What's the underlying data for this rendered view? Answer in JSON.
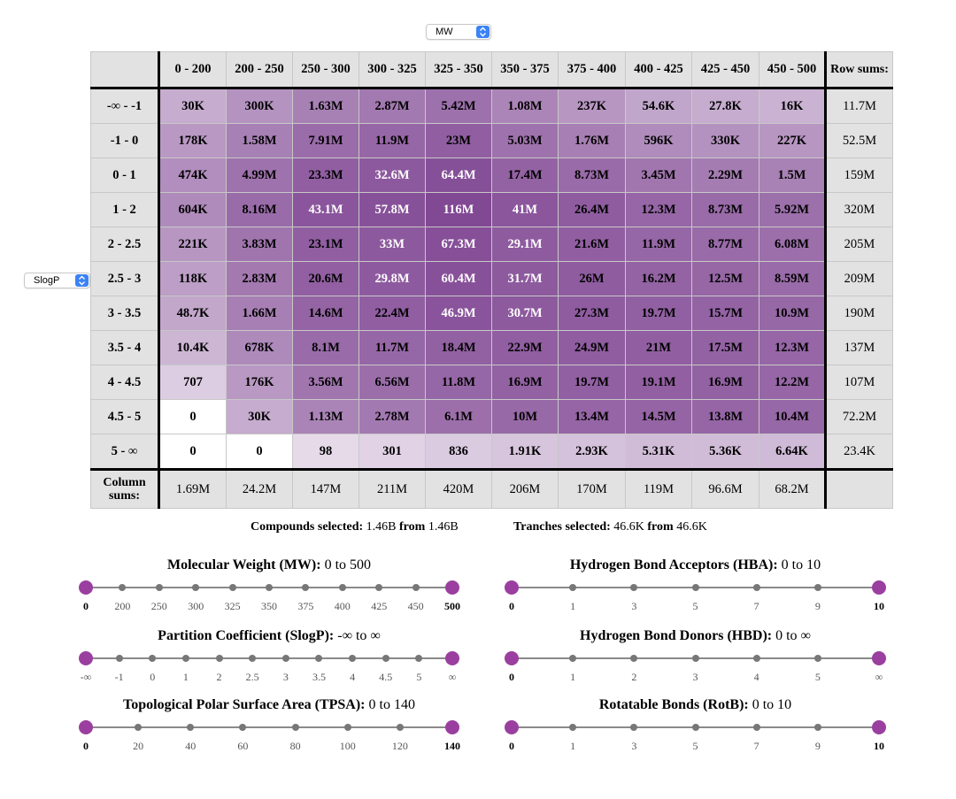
{
  "top_select": {
    "value": "MW"
  },
  "side_select": {
    "value": "SlogP"
  },
  "table": {
    "corner": "",
    "col_headers": [
      "0 - 200",
      "200 - 250",
      "250 - 300",
      "300 - 325",
      "325 - 350",
      "350 - 375",
      "375 - 400",
      "400 - 425",
      "425 - 450",
      "450 - 500"
    ],
    "row_sums_header": "Row sums:",
    "rows": [
      {
        "label": "-∞ - -1",
        "cells": [
          "30K",
          "300K",
          "1.63M",
          "2.87M",
          "5.42M",
          "1.08M",
          "237K",
          "54.6K",
          "27.8K",
          "16K"
        ],
        "sum": "11.7M"
      },
      {
        "label": "-1 - 0",
        "cells": [
          "178K",
          "1.58M",
          "7.91M",
          "11.9M",
          "23M",
          "5.03M",
          "1.76M",
          "596K",
          "330K",
          "227K"
        ],
        "sum": "52.5M"
      },
      {
        "label": "0 - 1",
        "cells": [
          "474K",
          "4.99M",
          "23.3M",
          "32.6M",
          "64.4M",
          "17.4M",
          "8.73M",
          "3.45M",
          "2.29M",
          "1.5M"
        ],
        "sum": "159M"
      },
      {
        "label": "1 - 2",
        "cells": [
          "604K",
          "8.16M",
          "43.1M",
          "57.8M",
          "116M",
          "41M",
          "26.4M",
          "12.3M",
          "8.73M",
          "5.92M"
        ],
        "sum": "320M"
      },
      {
        "label": "2 - 2.5",
        "cells": [
          "221K",
          "3.83M",
          "23.1M",
          "33M",
          "67.3M",
          "29.1M",
          "21.6M",
          "11.9M",
          "8.77M",
          "6.08M"
        ],
        "sum": "205M"
      },
      {
        "label": "2.5 - 3",
        "cells": [
          "118K",
          "2.83M",
          "20.6M",
          "29.8M",
          "60.4M",
          "31.7M",
          "26M",
          "16.2M",
          "12.5M",
          "8.59M"
        ],
        "sum": "209M"
      },
      {
        "label": "3 - 3.5",
        "cells": [
          "48.7K",
          "1.66M",
          "14.6M",
          "22.4M",
          "46.9M",
          "30.7M",
          "27.3M",
          "19.7M",
          "15.7M",
          "10.9M"
        ],
        "sum": "190M"
      },
      {
        "label": "3.5 - 4",
        "cells": [
          "10.4K",
          "678K",
          "8.1M",
          "11.7M",
          "18.4M",
          "22.9M",
          "24.9M",
          "21M",
          "17.5M",
          "12.3M"
        ],
        "sum": "137M"
      },
      {
        "label": "4 - 4.5",
        "cells": [
          "707",
          "176K",
          "3.56M",
          "6.56M",
          "11.8M",
          "16.9M",
          "19.7M",
          "19.1M",
          "16.9M",
          "12.2M"
        ],
        "sum": "107M"
      },
      {
        "label": "4.5 - 5",
        "cells": [
          "0",
          "30K",
          "1.13M",
          "2.78M",
          "6.1M",
          "10M",
          "13.4M",
          "14.5M",
          "13.8M",
          "10.4M"
        ],
        "sum": "72.2M"
      },
      {
        "label": "5 - ∞",
        "cells": [
          "0",
          "0",
          "98",
          "301",
          "836",
          "1.91K",
          "2.93K",
          "5.31K",
          "5.36K",
          "6.64K"
        ],
        "sum": "23.4K"
      }
    ],
    "col_sums_label": "Column sums:",
    "col_sums": [
      "1.69M",
      "24.2M",
      "147M",
      "211M",
      "420M",
      "206M",
      "170M",
      "119M",
      "96.6M",
      "68.2M"
    ],
    "col_sums_corner": ""
  },
  "summary": {
    "compounds_label": "Compounds selected:",
    "compounds_value": "1.46B",
    "compounds_from": "from",
    "compounds_total": "1.46B",
    "tranches_label": "Tranches selected:",
    "tranches_value": "46.6K",
    "tranches_from": "from",
    "tranches_total": "46.6K"
  },
  "sliders": {
    "mw": {
      "title_bold": "Molecular Weight (MW):",
      "range": "0 to 500",
      "ticks": [
        "0",
        "200",
        "250",
        "300",
        "325",
        "350",
        "375",
        "400",
        "425",
        "450",
        "500"
      ]
    },
    "slogp": {
      "title_bold": "Partition Coefficient (SlogP):",
      "range": "-∞ to ∞",
      "ticks": [
        "-∞",
        "-1",
        "0",
        "1",
        "2",
        "2.5",
        "3",
        "3.5",
        "4",
        "4.5",
        "5",
        "∞"
      ]
    },
    "tpsa": {
      "title_bold": "Topological Polar Surface Area (TPSA):",
      "range": "0 to 140",
      "ticks": [
        "0",
        "20",
        "40",
        "60",
        "80",
        "100",
        "120",
        "140"
      ]
    },
    "hba": {
      "title_bold": "Hydrogen Bond Acceptors (HBA):",
      "range": "0 to 10",
      "ticks": [
        "0",
        "1",
        "3",
        "5",
        "7",
        "9",
        "10"
      ]
    },
    "hbd": {
      "title_bold": "Hydrogen Bond Donors (HBD):",
      "range": "0 to ∞",
      "ticks": [
        "0",
        "1",
        "2",
        "3",
        "4",
        "5",
        "∞"
      ]
    },
    "rotb": {
      "title_bold": "Rotatable Bonds (RotB):",
      "range": "0 to 10",
      "ticks": [
        "0",
        "1",
        "3",
        "5",
        "7",
        "9",
        "10"
      ]
    }
  },
  "colors": {
    "handle": "#9a3f9f",
    "dot": "#777777",
    "header_bg": "#e2e2e2",
    "heat_base": "#7a3e8e"
  }
}
